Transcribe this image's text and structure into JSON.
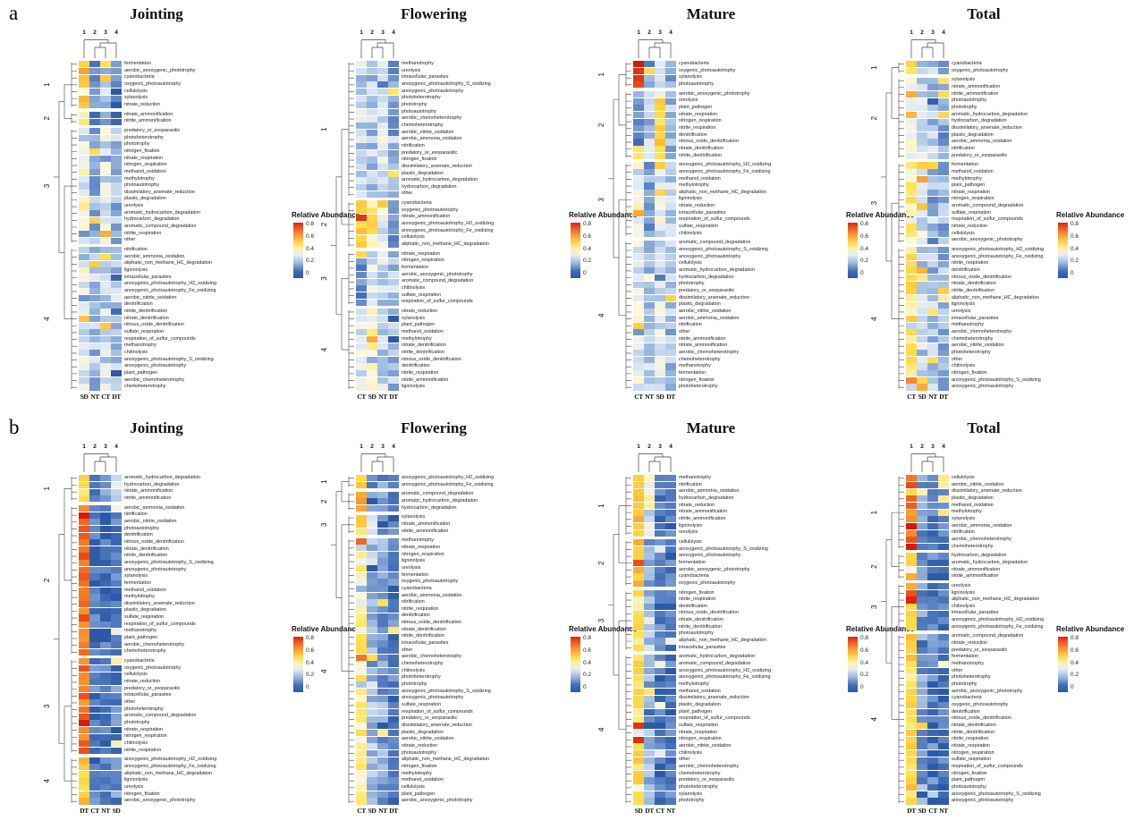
{
  "figure": {
    "panel_a_label": "a",
    "panel_b_label": "b",
    "top_cluster_numbers": [
      "1",
      "2",
      "3",
      "4"
    ],
    "side_cluster_numbers": [
      "1",
      "2",
      "3",
      "4"
    ],
    "legend": {
      "title": "Relative Abundance",
      "ticks": [
        "0.8",
        "0.6",
        "0.4",
        "0.2",
        "0"
      ]
    }
  },
  "chart_data": {
    "type": "heatmap",
    "value_range": [
      0,
      0.8
    ],
    "legend_title": "Relative Abundance",
    "panels": [
      {
        "panel": "a",
        "stage": "Jointing",
        "columns": [
          "SD",
          "NT",
          "CT",
          "DT"
        ],
        "row_clusters": [
          7,
          2,
          17,
          21
        ],
        "cluster_col_values": [
          [
            0.55,
            0.1,
            0.22,
            0.15
          ],
          [
            0.38,
            0.05,
            0.18,
            0.1
          ],
          [
            0.35,
            0.18,
            0.28,
            0.2
          ],
          [
            0.3,
            0.2,
            0.25,
            0.22
          ]
        ],
        "rows": [
          "fermentation",
          "aerobic_anoxygenic_phototrophy",
          "cyanobacteria",
          "oxygenic_photoautotrophy",
          "cellulolysis",
          "xylanolysis",
          "nitrate_reduction",
          "nitrate_ammonification",
          "nitrite_ammonification",
          "predatory_or_exoparasitic",
          "photoheterotrophy",
          "phototrophy",
          "nitrogen_fixation",
          "nitrate_respiration",
          "nitrogen_respiration",
          "methanol_oxidation",
          "methylotrophy",
          "photoautotrophy",
          "dissimilatory_arsenate_reduction",
          "plastic_degradation",
          "ureolysis",
          "aromatic_hydrocarbon_degradation",
          "hydrocarbon_degradation",
          "aromatic_compound_degradation",
          "nitrite_respiration",
          "other",
          "nitrification",
          "aerobic_ammonia_oxidation",
          "aliphatic_non_methane_HC_degradation",
          "ligninolysis",
          "intracellular_parasites",
          "anoxygenic_photoautotrophy_H2_oxidizing",
          "anoxygenic_photoautotrophy_Fe_oxidizing",
          "aerobic_nitrite_oxidation",
          "denitrification",
          "nitrite_denitrification",
          "nitrate_denitrification",
          "nitrous_oxide_denitrification",
          "sulfate_respiration",
          "respiration_of_sulfur_compounds",
          "methanotrophy",
          "chitinolysis",
          "anoxygenic_photoautotrophy_S_oxidizing",
          "anoxygenic_photoautotrophy",
          "plant_pathogen",
          "aerobic_chemoheterotrophy",
          "chemoheterotrophy"
        ]
      },
      {
        "panel": "a",
        "stage": "Flowering",
        "columns": [
          "CT",
          "SD",
          "NT",
          "DT"
        ],
        "row_clusters": [
          20,
          7,
          8,
          12
        ],
        "cluster_col_values": [
          [
            0.25,
            0.22,
            0.28,
            0.15
          ],
          [
            0.5,
            0.45,
            0.3,
            0.12
          ],
          [
            0.12,
            0.3,
            0.25,
            0.22
          ],
          [
            0.3,
            0.35,
            0.25,
            0.2
          ]
        ],
        "rows": [
          "methanotrophy",
          "ureolysis",
          "intracellular_parasites",
          "anoxygenic_photoautotrophy_S_oxidizing",
          "anoxygenic_photoautotrophy",
          "photoheterotrophy",
          "phototrophy",
          "photoautotrophy",
          "aerobic_chemoheterotrophy",
          "chemoheterotrophy",
          "aerobic_nitrite_oxidation",
          "aerobic_ammonia_oxidation",
          "nitrification",
          "predatory_or_exoparasitic",
          "nitrogen_fixation",
          "dissimilatory_arsenate_reduction",
          "plastic_degradation",
          "aromatic_hydrocarbon_degradation",
          "hydrocarbon_degradation",
          "other",
          "cyanobacteria",
          "oxygenic_photoautotrophy",
          "nitrate_ammonification",
          "anoxygenic_photoautotrophy_H2_oxidizing",
          "anoxygenic_photoautotrophy_Fe_oxidizing",
          "cellulolysis",
          "aliphatic_non_methane_HC_degradation",
          "nitrate_respiration",
          "nitrogen_respiration",
          "fermentation",
          "aerobic_anoxygenic_phototrophy",
          "aromatic_compound_degradation",
          "chitinolysis",
          "sulfate_respiration",
          "respiration_of_sulfur_compounds",
          "nitrate_reduction",
          "xylanolysis",
          "plant_pathogen",
          "methanol_oxidation",
          "methylotrophy",
          "nitrate_denitrification",
          "nitrite_denitrification",
          "nitrous_oxide_denitrification",
          "denitrification",
          "nitrite_respiration",
          "nitrite_ammonification",
          "ligninolysis"
        ]
      },
      {
        "panel": "a",
        "stage": "Mature",
        "columns": [
          "CT",
          "NT",
          "SD",
          "DT"
        ],
        "row_clusters": [
          4,
          10,
          11,
          22
        ],
        "cluster_col_values": [
          [
            0.8,
            0.15,
            0.3,
            0.18
          ],
          [
            0.12,
            0.25,
            0.5,
            0.2
          ],
          [
            0.35,
            0.15,
            0.3,
            0.25
          ],
          [
            0.3,
            0.22,
            0.28,
            0.2
          ]
        ],
        "rows": [
          "cyanobacteria",
          "oxygenic_photoautotrophy",
          "xylanolysis",
          "photoautotrophy",
          "aerobic_anoxygenic_phototrophy",
          "ureolysis",
          "plant_pathogen",
          "nitrate_respiration",
          "nitrogen_respiration",
          "nitrite_respiration",
          "denitrification",
          "nitrous_oxide_denitrification",
          "nitrate_denitrification",
          "nitrite_denitrification",
          "anoxygenic_photoautotrophy_H2_oxidizing",
          "anoxygenic_photoautotrophy_Fe_oxidizing",
          "methanol_oxidation",
          "methylotrophy",
          "aliphatic_non_methane_HC_degradation",
          "ligninolysis",
          "nitrate_reduction",
          "intracellular_parasites",
          "respiration_of_sulfur_compounds",
          "sulfate_respiration",
          "chitinolysis",
          "aromatic_compound_degradation",
          "anoxygenic_photoautotrophy_S_oxidizing",
          "anoxygenic_photoautotrophy",
          "cellulolysis",
          "aromatic_hydrocarbon_degradation",
          "hydrocarbon_degradation",
          "phototrophy",
          "predatory_or_exoparasitic",
          "dissimilatory_arsenate_reduction",
          "plastic_degradation",
          "aerobic_nitrite_oxidation",
          "aerobic_ammonia_oxidation",
          "nitrification",
          "other",
          "nitrite_ammonification",
          "nitrate_ammonification",
          "aerobic_chemoheterotrophy",
          "chemoheterotrophy",
          "methanotrophy",
          "fermentation",
          "nitrogen_fixation",
          "photoheterotrophy"
        ]
      },
      {
        "panel": "a",
        "stage": "Total",
        "columns": [
          "CT",
          "SD",
          "NT",
          "DT"
        ],
        "row_clusters": [
          2,
          12,
          12,
          21
        ],
        "cluster_col_values": [
          [
            0.55,
            0.25,
            0.2,
            0.15
          ],
          [
            0.35,
            0.25,
            0.22,
            0.18
          ],
          [
            0.4,
            0.28,
            0.22,
            0.18
          ],
          [
            0.45,
            0.25,
            0.2,
            0.18
          ]
        ],
        "rows": [
          "cyanobacteria",
          "oxygenic_photoautotrophy",
          "xylanolysis",
          "nitrate_ammonification",
          "nitrite_ammonification",
          "photoautotrophy",
          "phototrophy",
          "aromatic_hydrocarbon_degradation",
          "hydrocarbon_degradation",
          "dissimilatory_arsenate_reduction",
          "plastic_degradation",
          "aerobic_ammonia_oxidation",
          "nitrification",
          "predatory_or_exoparasitic",
          "fermentation",
          "methanol_oxidation",
          "methylotrophy",
          "plant_pathogen",
          "nitrate_respiration",
          "nitrogen_respiration",
          "aromatic_compound_degradation",
          "sulfate_respiration",
          "respiration_of_sulfur_compounds",
          "nitrate_reduction",
          "cellulolysis",
          "aerobic_anoxygenic_phototrophy",
          "anoxygenic_photoautotrophy_H2_oxidizing",
          "anoxygenic_photoautotrophy_Fe_oxidizing",
          "nitrite_respiration",
          "denitrification",
          "nitrous_oxide_denitrification",
          "nitrate_denitrification",
          "nitrite_denitrification",
          "aliphatic_non_methane_HC_degradation",
          "ligninolysis",
          "ureolysis",
          "intracellular_parasites",
          "methanotrophy",
          "aerobic_chemoheterotrophy",
          "chemoheterotrophy",
          "aerobic_nitrite_oxidation",
          "photoheterotrophy",
          "other",
          "chitinolysis",
          "nitrogen_fixation",
          "anoxygenic_photoautotrophy_S_oxidizing",
          "anoxygenic_photoautotrophy"
        ]
      },
      {
        "panel": "b",
        "stage": "Jointing",
        "columns": [
          "DT",
          "CT",
          "NT",
          "SD"
        ],
        "row_clusters": [
          4,
          22,
          14,
          7
        ],
        "cluster_col_values": [
          [
            0.45,
            0.1,
            0.12,
            0.25
          ],
          [
            0.72,
            0.06,
            0.06,
            0.08
          ],
          [
            0.7,
            0.08,
            0.06,
            0.1
          ],
          [
            0.52,
            0.08,
            0.08,
            0.12
          ]
        ],
        "rows": [
          "aromatic_hydrocarbon_degradation",
          "hydrocarbon_degradation",
          "nitrate_ammonification",
          "nitrite_ammonification",
          "aerobic_ammonia_oxidation",
          "nitrification",
          "aerobic_nitrite_oxidation",
          "photoautotrophy",
          "denitrification",
          "nitrous_oxide_denitrification",
          "nitrate_denitrification",
          "nitrite_denitrification",
          "anoxygenic_photoautotrophy_S_oxidizing",
          "anoxygenic_photoautotrophy",
          "xylanolysis",
          "fermentation",
          "methanol_oxidation",
          "methylotrophy",
          "dissimilatory_arsenate_reduction",
          "plastic_degradation",
          "sulfate_respiration",
          "respiration_of_sulfur_compounds",
          "methanotrophy",
          "plant_pathogen",
          "aerobic_chemoheterotrophy",
          "chemoheterotrophy",
          "cyanobacteria",
          "oxygenic_photoautotrophy",
          "cellulolysis",
          "nitrate_reduction",
          "predatory_or_exoparasitic",
          "intracellular_parasites",
          "other",
          "photoheterotrophy",
          "aromatic_compound_degradation",
          "phototrophy",
          "nitrate_respiration",
          "nitrogen_respiration",
          "chitinolysis",
          "nitrite_respiration",
          "anoxygenic_photoautotrophy_H2_oxidizing",
          "anoxygenic_photoautotrophy_Fe_oxidizing",
          "aliphatic_non_methane_HC_degradation",
          "ligninolysis",
          "ureolysis",
          "nitrogen_fixation",
          "aerobic_anoxygenic_phototrophy"
        ]
      },
      {
        "panel": "b",
        "stage": "Flowering",
        "columns": [
          "CT",
          "SD",
          "NT",
          "DT"
        ],
        "row_clusters": [
          2,
          3,
          3,
          39
        ],
        "cluster_col_values": [
          [
            0.48,
            0.25,
            0.15,
            0.08
          ],
          [
            0.58,
            0.18,
            0.12,
            0.07
          ],
          [
            0.5,
            0.3,
            0.2,
            0.08
          ],
          [
            0.4,
            0.2,
            0.15,
            0.08
          ]
        ],
        "rows": [
          "anoxygenic_photoautotrophy_H2_oxidizing",
          "anoxygenic_photoautotrophy_Fe_oxidizing",
          "aromatic_compound_degradation",
          "aromatic_hydrocarbon_degradation",
          "hydrocarbon_degradation",
          "xylanolysis",
          "nitrate_ammonification",
          "nitrite_ammonification",
          "methanotrophy",
          "nitrate_respiration",
          "nitrogen_respiration",
          "ligninolysis",
          "ureolysis",
          "fermentation",
          "oxygenic_photoautotrophy",
          "cyanobacteria",
          "aerobic_ammonia_oxidation",
          "nitrification",
          "nitrite_respiration",
          "denitrification",
          "nitrous_oxide_denitrification",
          "nitrate_denitrification",
          "nitrite_denitrification",
          "intracellular_parasites",
          "other",
          "aerobic_chemoheterotrophy",
          "chemoheterotrophy",
          "chitinolysis",
          "photoheterotrophy",
          "phototrophy",
          "anoxygenic_photoautotrophy_S_oxidizing",
          "anoxygenic_photoautotrophy",
          "sulfate_respiration",
          "respiration_of_sulfur_compounds",
          "predatory_or_exoparasitic",
          "dissimilatory_arsenate_reduction",
          "plastic_degradation",
          "aerobic_nitrite_oxidation",
          "nitrate_reduction",
          "photoautotrophy",
          "aliphatic_non_methane_HC_degradation",
          "nitrogen_fixation",
          "methylotrophy",
          "methanol_oxidation",
          "cellulolysis",
          "plant_pathogen",
          "aerobic_anoxygenic_phototrophy"
        ]
      },
      {
        "panel": "b",
        "stage": "Mature",
        "columns": [
          "SD",
          "DT",
          "CT",
          "NT"
        ],
        "row_clusters": [
          9,
          7,
          9,
          22
        ],
        "cluster_col_values": [
          [
            0.52,
            0.33,
            0.08,
            0.07
          ],
          [
            0.56,
            0.18,
            0.08,
            0.07
          ],
          [
            0.45,
            0.22,
            0.1,
            0.08
          ],
          [
            0.48,
            0.18,
            0.07,
            0.07
          ]
        ],
        "rows": [
          "methanotrophy",
          "nitrification",
          "aerobic_ammonia_oxidation",
          "hydrocarbon_degradation",
          "nitrate_reduction",
          "nitrate_ammonification",
          "nitrite_ammonification",
          "ligninolysis",
          "ureolysis",
          "cellulolysis",
          "anoxygenic_photoautotrophy_S_oxidizing",
          "anoxygenic_photoautotrophy",
          "fermentation",
          "aerobic_anoxygenic_phototrophy",
          "cyanobacteria",
          "oxygenic_photoautotrophy",
          "nitrogen_fixation",
          "nitrite_respiration",
          "denitrification",
          "nitrous_oxide_denitrification",
          "nitrate_denitrification",
          "nitrite_denitrification",
          "photoautotrophy",
          "aliphatic_non_methane_HC_degradation",
          "intracellular_parasites",
          "aromatic_hydrocarbon_degradation",
          "aromatic_compound_degradation",
          "anoxygenic_photoautotrophy_H2_oxidizing",
          "anoxygenic_photoautotrophy_Fe_oxidizing",
          "methylotrophy",
          "methanol_oxidation",
          "dissimilatory_arsenate_reduction",
          "plastic_degradation",
          "plant_pathogen",
          "respiration_of_sulfur_compounds",
          "sulfate_respiration",
          "nitrate_respiration",
          "nitrogen_respiration",
          "aerobic_nitrite_oxidation",
          "chitinolysis",
          "other",
          "aerobic_chemoheterotrophy",
          "chemoheterotrophy",
          "predatory_or_exoparasitic",
          "photoheterotrophy",
          "xylanolysis",
          "phototrophy"
        ]
      },
      {
        "panel": "b",
        "stage": "Total",
        "columns": [
          "DT",
          "SD",
          "CT",
          "NT"
        ],
        "row_clusters": [
          11,
          4,
          7,
          25
        ],
        "cluster_col_values": [
          [
            0.7,
            0.12,
            0.08,
            0.07
          ],
          [
            0.55,
            0.16,
            0.08,
            0.07
          ],
          [
            0.55,
            0.15,
            0.09,
            0.08
          ],
          [
            0.5,
            0.15,
            0.08,
            0.07
          ]
        ],
        "rows": [
          "cellulolysis",
          "aerobic_nitrite_oxidation",
          "dissimilatory_arsenate_reduction",
          "plastic_degradation",
          "methanol_oxidation",
          "methylotrophy",
          "xylanolysis",
          "aerobic_ammonia_oxidation",
          "nitrification",
          "aerobic_chemoheterotrophy",
          "chemoheterotrophy",
          "hydrocarbon_degradation",
          "aromatic_hydrocarbon_degradation",
          "nitrate_ammonification",
          "nitrite_ammonification",
          "ureolysis",
          "ligninolysis",
          "aliphatic_non_methane_HC_degradation",
          "chitinolysis",
          "intracellular_parasites",
          "anoxygenic_photoautotrophy_H2_oxidizing",
          "anoxygenic_photoautotrophy_Fe_oxidizing",
          "aromatic_compound_degradation",
          "nitrate_reduction",
          "predatory_or_exoparasitic",
          "fermentation",
          "methanotrophy",
          "other",
          "photoheterotrophy",
          "phototrophy",
          "aerobic_anoxygenic_phototrophy",
          "cyanobacteria",
          "oxygenic_photoautotrophy",
          "denitrification",
          "nitrous_oxide_denitrification",
          "nitrate_denitrification",
          "nitrite_denitrification",
          "nitrite_respiration",
          "nitrate_respiration",
          "nitrogen_respiration",
          "sulfate_respiration",
          "respiration_of_sulfur_compounds",
          "nitrogen_fixation",
          "plant_pathogen",
          "photoautotrophy",
          "anoxygenic_photoautotrophy_S_oxidizing",
          "anoxygenic_photoautotrophy"
        ]
      }
    ]
  }
}
